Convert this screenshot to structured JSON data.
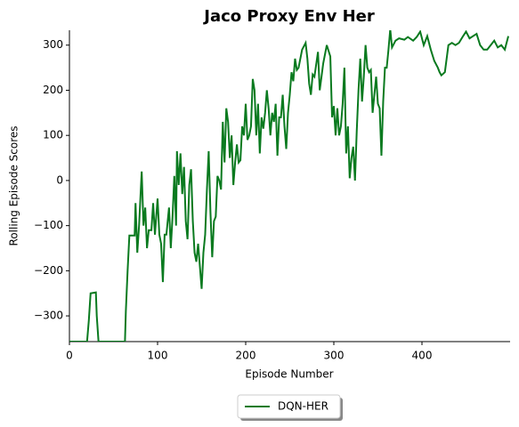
{
  "chart_data": {
    "type": "line",
    "title": "Jaco Proxy Env Her",
    "x_label": "Episode Number",
    "y_label": "Rolling Episode Scores",
    "xlim": [
      0,
      500
    ],
    "ylim": [
      -357,
      333
    ],
    "xticks": [
      0,
      100,
      200,
      300,
      400
    ],
    "yticks": [
      {
        "value": -300,
        "label": "−300"
      },
      {
        "value": -200,
        "label": "−200"
      },
      {
        "value": -100,
        "label": "−100"
      },
      0,
      100,
      200,
      300
    ],
    "legend": "lower center",
    "x": [
      0,
      20,
      22,
      24,
      30,
      31,
      33,
      63,
      64,
      66,
      68,
      74,
      75,
      77,
      79,
      82,
      84,
      86,
      88,
      90,
      93,
      95,
      97,
      100,
      102,
      104,
      106,
      108,
      110,
      113,
      115,
      117,
      119,
      121,
      122,
      124,
      126,
      128,
      130,
      132,
      134,
      136,
      138,
      140,
      142,
      144,
      146,
      148,
      150,
      152,
      154,
      156,
      158,
      160,
      162,
      164,
      166,
      168,
      170,
      172,
      174,
      176,
      178,
      180,
      182,
      184,
      186,
      188,
      190,
      192,
      194,
      196,
      198,
      200,
      202,
      204,
      206,
      208,
      210,
      212,
      214,
      216,
      218,
      220,
      222,
      224,
      226,
      228,
      230,
      232,
      234,
      236,
      238,
      240,
      242,
      244,
      246,
      248,
      250,
      252,
      254,
      256,
      258,
      260,
      264,
      268,
      270,
      272,
      274,
      276,
      278,
      282,
      284,
      288,
      292,
      296,
      298,
      300,
      302,
      304,
      306,
      308,
      310,
      312,
      314,
      316,
      318,
      320,
      322,
      324,
      326,
      328,
      330,
      332,
      334,
      336,
      338,
      340,
      342,
      344,
      346,
      348,
      350,
      352,
      354,
      356,
      358,
      360,
      362,
      364,
      366,
      370,
      374,
      380,
      384,
      390,
      394,
      398,
      402,
      406,
      410,
      414,
      418,
      420,
      422,
      426,
      430,
      434,
      438,
      442,
      446,
      450,
      454,
      458,
      462,
      466,
      470,
      474,
      478,
      482,
      486,
      490,
      494,
      498
    ],
    "series": [
      {
        "name": "DQN-HER",
        "color": "#0a7a1f",
        "values": [
          -357,
          -357,
          -310,
          -250,
          -248,
          -300,
          -357,
          -357,
          -290,
          -200,
          -122,
          -122,
          -50,
          -160,
          -100,
          20,
          -100,
          -60,
          -150,
          -110,
          -110,
          -50,
          -120,
          -40,
          -120,
          -140,
          -225,
          -120,
          -120,
          -60,
          -150,
          -80,
          10,
          -100,
          65,
          -10,
          60,
          -30,
          30,
          -90,
          -130,
          -10,
          25,
          -90,
          -160,
          -180,
          -140,
          -190,
          -240,
          -160,
          -120,
          -20,
          65,
          -70,
          -170,
          -90,
          -80,
          10,
          0,
          -20,
          130,
          40,
          160,
          130,
          50,
          100,
          -10,
          40,
          80,
          40,
          45,
          120,
          100,
          170,
          90,
          100,
          120,
          225,
          200,
          100,
          170,
          60,
          140,
          115,
          150,
          200,
          160,
          100,
          150,
          130,
          170,
          55,
          140,
          140,
          190,
          120,
          70,
          150,
          190,
          240,
          220,
          270,
          245,
          250,
          290,
          305,
          270,
          215,
          190,
          235,
          230,
          285,
          200,
          260,
          300,
          275,
          140,
          165,
          100,
          160,
          100,
          120,
          170,
          250,
          60,
          120,
          5,
          50,
          75,
          0,
          110,
          200,
          270,
          175,
          230,
          300,
          250,
          240,
          245,
          150,
          190,
          230,
          170,
          160,
          55,
          175,
          250,
          250,
          290,
          335,
          295,
          310,
          315,
          312,
          318,
          310,
          318,
          330,
          300,
          320,
          290,
          265,
          250,
          240,
          233,
          240,
          300,
          305,
          300,
          305,
          318,
          330,
          315,
          320,
          325,
          300,
          290,
          290,
          300,
          310,
          295,
          300,
          290,
          320
        ]
      }
    ]
  }
}
